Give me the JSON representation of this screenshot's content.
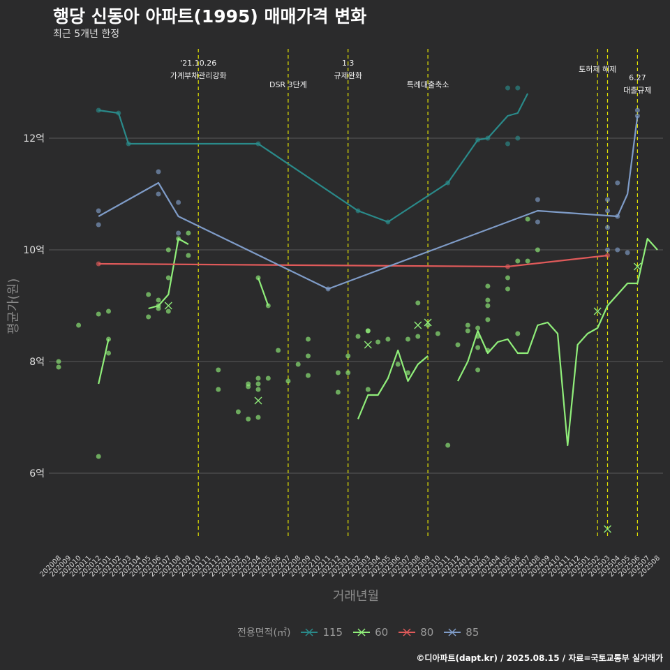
{
  "title": "행당 신동아 아파트(1995) 매매가격 변화",
  "subtitle": "최근 5개년 한정",
  "caption": "©디아파트(dapt.kr) / 2025.08.15 / 자료=국토교통부 실거래가",
  "chart_data": {
    "type": "line",
    "title": "행당 신동아 아파트(1995) 매매가격 변화",
    "subtitle": "최근 5개년 한정",
    "xlabel": "거래년월",
    "ylabel": "평균가(원)",
    "x_months": [
      "202008",
      "202009",
      "202010",
      "202011",
      "202012",
      "202101",
      "202102",
      "202103",
      "202104",
      "202105",
      "202106",
      "202107",
      "202108",
      "202109",
      "202110",
      "202111",
      "202112",
      "202201",
      "202202",
      "202203",
      "202204",
      "202205",
      "202206",
      "202207",
      "202208",
      "202209",
      "202210",
      "202211",
      "202212",
      "202301",
      "202302",
      "202303",
      "202304",
      "202305",
      "202306",
      "202307",
      "202308",
      "202309",
      "202310",
      "202311",
      "202312",
      "202401",
      "202402",
      "202403",
      "202404",
      "202405",
      "202406",
      "202407",
      "202408",
      "202409",
      "202410",
      "202411",
      "202412",
      "202501",
      "202502",
      "202503",
      "202504",
      "202505",
      "202506",
      "202507",
      "202508"
    ],
    "ylim": [
      4.6,
      13.6
    ],
    "y_ticks": [
      6,
      8,
      10,
      12
    ],
    "y_tick_labels": [
      "6억",
      "8억",
      "10억",
      "12억"
    ],
    "grid": true,
    "legend_title": "전용면적(㎡)",
    "legend_position": "bottom",
    "series": [
      {
        "name": "115",
        "color": "#2a8a8a",
        "line": [
          [
            "202012",
            12.5
          ],
          [
            "202102",
            12.45
          ],
          [
            "202103",
            11.9
          ],
          [
            "202204",
            11.9
          ],
          [
            "202302",
            10.7
          ],
          [
            "202305",
            10.5
          ],
          [
            "202311",
            11.2
          ],
          [
            "202402",
            11.97
          ],
          [
            "202403",
            12.0
          ],
          [
            "202405",
            12.4
          ],
          [
            "202406",
            12.45
          ],
          [
            "202407",
            12.8
          ]
        ],
        "points": [
          [
            "202012",
            12.5
          ],
          [
            "202102",
            12.45
          ],
          [
            "202103",
            11.9
          ],
          [
            "202204",
            11.9
          ],
          [
            "202302",
            10.7
          ],
          [
            "202305",
            10.5
          ],
          [
            "202311",
            11.2
          ],
          [
            "202402",
            11.97
          ],
          [
            "202403",
            12.0
          ],
          [
            "202405",
            12.9
          ],
          [
            "202405",
            11.9
          ],
          [
            "202406",
            12.9
          ],
          [
            "202406",
            12.0
          ]
        ],
        "cancels": []
      },
      {
        "name": "60",
        "color": "#90ee7a",
        "segments": [
          [
            [
              "202012",
              7.6
            ],
            [
              "202101",
              8.4
            ]
          ],
          [
            [
              "202105",
              8.95
            ],
            [
              "202106",
              9.0
            ],
            [
              "202107",
              9.2
            ],
            [
              "202108",
              10.2
            ],
            [
              "202109",
              10.1
            ]
          ],
          [
            [
              "202204",
              9.5
            ],
            [
              "202205",
              9.0
            ]
          ],
          [
            [
              "202302",
              6.97
            ],
            [
              "202303",
              7.4
            ],
            [
              "202304",
              7.4
            ],
            [
              "202305",
              7.7
            ],
            [
              "202306",
              8.2
            ],
            [
              "202307",
              7.65
            ],
            [
              "202308",
              7.95
            ],
            [
              "202309",
              8.1
            ]
          ],
          [
            [
              "202312",
              7.65
            ],
            [
              "202401",
              8.0
            ],
            [
              "202402",
              8.55
            ],
            [
              "202403",
              8.15
            ],
            [
              "202404",
              8.35
            ],
            [
              "202405",
              8.4
            ],
            [
              "202406",
              8.15
            ],
            [
              "202407",
              8.15
            ],
            [
              "202408",
              8.65
            ],
            [
              "202409",
              8.7
            ],
            [
              "202410",
              8.5
            ],
            [
              "202411",
              6.5
            ],
            [
              "202412",
              8.3
            ],
            [
              "202501",
              8.5
            ],
            [
              "202502",
              8.6
            ],
            [
              "202503",
              9.0
            ],
            [
              "202505",
              9.4
            ],
            [
              "202506",
              9.4
            ],
            [
              "202507",
              10.2
            ],
            [
              "202508",
              10.0
            ]
          ]
        ],
        "points": [
          [
            "202008",
            8.0
          ],
          [
            "202008",
            7.9
          ],
          [
            "202010",
            8.65
          ],
          [
            "202012",
            8.85
          ],
          [
            "202012",
            6.3
          ],
          [
            "202101",
            8.9
          ],
          [
            "202101",
            8.4
          ],
          [
            "202101",
            8.15
          ],
          [
            "202105",
            8.8
          ],
          [
            "202105",
            9.2
          ],
          [
            "202106",
            9.1
          ],
          [
            "202106",
            9.0
          ],
          [
            "202106",
            8.95
          ],
          [
            "202107",
            10.0
          ],
          [
            "202107",
            9.5
          ],
          [
            "202107",
            8.9
          ],
          [
            "202108",
            10.2
          ],
          [
            "202109",
            10.3
          ],
          [
            "202109",
            9.9
          ],
          [
            "202204",
            9.5
          ],
          [
            "202205",
            9.0
          ],
          [
            "202112",
            7.85
          ],
          [
            "202112",
            7.5
          ],
          [
            "202202",
            7.1
          ],
          [
            "202203",
            7.6
          ],
          [
            "202203",
            7.55
          ],
          [
            "202203",
            6.97
          ],
          [
            "202204",
            7.7
          ],
          [
            "202204",
            7.6
          ],
          [
            "202204",
            7.5
          ],
          [
            "202204",
            7.0
          ],
          [
            "202205",
            7.7
          ],
          [
            "202206",
            8.2
          ],
          [
            "202207",
            7.65
          ],
          [
            "202208",
            7.95
          ],
          [
            "202209",
            8.4
          ],
          [
            "202209",
            8.1
          ],
          [
            "202209",
            7.75
          ],
          [
            "202212",
            7.8
          ],
          [
            "202212",
            7.45
          ],
          [
            "202301",
            8.1
          ],
          [
            "202301",
            7.8
          ],
          [
            "202302",
            8.45
          ],
          [
            "202303",
            8.55
          ],
          [
            "202303",
            8.55
          ],
          [
            "202303",
            7.5
          ],
          [
            "202304",
            8.35
          ],
          [
            "202305",
            8.4
          ],
          [
            "202306",
            7.95
          ],
          [
            "202307",
            7.8
          ],
          [
            "202307",
            8.4
          ],
          [
            "202308",
            8.45
          ],
          [
            "202308",
            9.05
          ],
          [
            "202309",
            8.65
          ],
          [
            "202310",
            8.5
          ],
          [
            "202311",
            6.5
          ],
          [
            "202312",
            8.3
          ],
          [
            "202401",
            8.65
          ],
          [
            "202401",
            8.55
          ],
          [
            "202402",
            8.6
          ],
          [
            "202402",
            8.45
          ],
          [
            "202402",
            8.25
          ],
          [
            "202402",
            7.85
          ],
          [
            "202403",
            9.35
          ],
          [
            "202403",
            9.1
          ],
          [
            "202403",
            9.0
          ],
          [
            "202403",
            8.75
          ],
          [
            "202403",
            8.2
          ],
          [
            "202405",
            9.5
          ],
          [
            "202405",
            9.3
          ],
          [
            "202406",
            9.8
          ],
          [
            "202406",
            8.5
          ],
          [
            "202407",
            10.55
          ],
          [
            "202407",
            9.8
          ],
          [
            "202408",
            10.0
          ]
        ],
        "cancels": [
          [
            "202107",
            9.0
          ],
          [
            "202204",
            7.3
          ],
          [
            "202303",
            8.3
          ],
          [
            "202308",
            8.65
          ],
          [
            "202309",
            8.7
          ],
          [
            "202502",
            8.9
          ],
          [
            "202503",
            5.0
          ],
          [
            "202506",
            9.7
          ]
        ]
      },
      {
        "name": "80",
        "color": "#e05a5a",
        "line": [
          [
            "202012",
            9.75
          ],
          [
            "202405",
            9.7
          ],
          [
            "202503",
            9.9
          ]
        ],
        "points": [
          [
            "202012",
            9.75
          ],
          [
            "202405",
            9.7
          ],
          [
            "202503",
            9.9
          ]
        ],
        "cancels": []
      },
      {
        "name": "85",
        "color": "#7f9cc8",
        "line": [
          [
            "202012",
            10.6
          ],
          [
            "202106",
            11.2
          ],
          [
            "202108",
            10.6
          ],
          [
            "202211",
            9.3
          ],
          [
            "202408",
            10.7
          ],
          [
            "202504",
            10.6
          ],
          [
            "202505",
            11.0
          ],
          [
            "202506",
            12.4
          ]
        ],
        "points": [
          [
            "202012",
            10.7
          ],
          [
            "202012",
            10.45
          ],
          [
            "202106",
            11.4
          ],
          [
            "202106",
            11.0
          ],
          [
            "202108",
            10.85
          ],
          [
            "202108",
            10.3
          ],
          [
            "202211",
            9.3
          ],
          [
            "202408",
            10.9
          ],
          [
            "202408",
            10.5
          ],
          [
            "202503",
            10.9
          ],
          [
            "202503",
            10.7
          ],
          [
            "202503",
            10.4
          ],
          [
            "202503",
            10.0
          ],
          [
            "202504",
            11.2
          ],
          [
            "202504",
            10.6
          ],
          [
            "202504",
            10.0
          ],
          [
            "202505",
            9.95
          ],
          [
            "202506",
            12.5
          ],
          [
            "202506",
            12.4
          ]
        ],
        "cancels": []
      }
    ],
    "annotations": [
      {
        "x": "202110",
        "lines": [
          "'21.10.26",
          "가계부채관리강화"
        ]
      },
      {
        "x": "202207",
        "lines": [
          "",
          "DSR 3단계"
        ]
      },
      {
        "x": "202301",
        "lines": [
          "1.3",
          "규제완화"
        ]
      },
      {
        "x": "202309",
        "lines": [
          "",
          "특례대출축소"
        ]
      },
      {
        "x": "202502",
        "lines": [
          "토허제 해제",
          ""
        ]
      },
      {
        "x": "202503",
        "lines": [
          "",
          ""
        ]
      },
      {
        "x": "202506",
        "lines": [
          "6.27",
          "대출규제"
        ]
      }
    ]
  },
  "legend": {
    "title": "전용면적(㎡)",
    "items": [
      {
        "label": "115",
        "color": "#2a8a8a",
        "icon": "line-cross"
      },
      {
        "label": "60",
        "color": "#90ee7a",
        "icon": "line-cross"
      },
      {
        "label": "80",
        "color": "#e05a5a",
        "icon": "line-cross"
      },
      {
        "label": "85",
        "color": "#7f9cc8",
        "icon": "line-cross"
      }
    ]
  }
}
